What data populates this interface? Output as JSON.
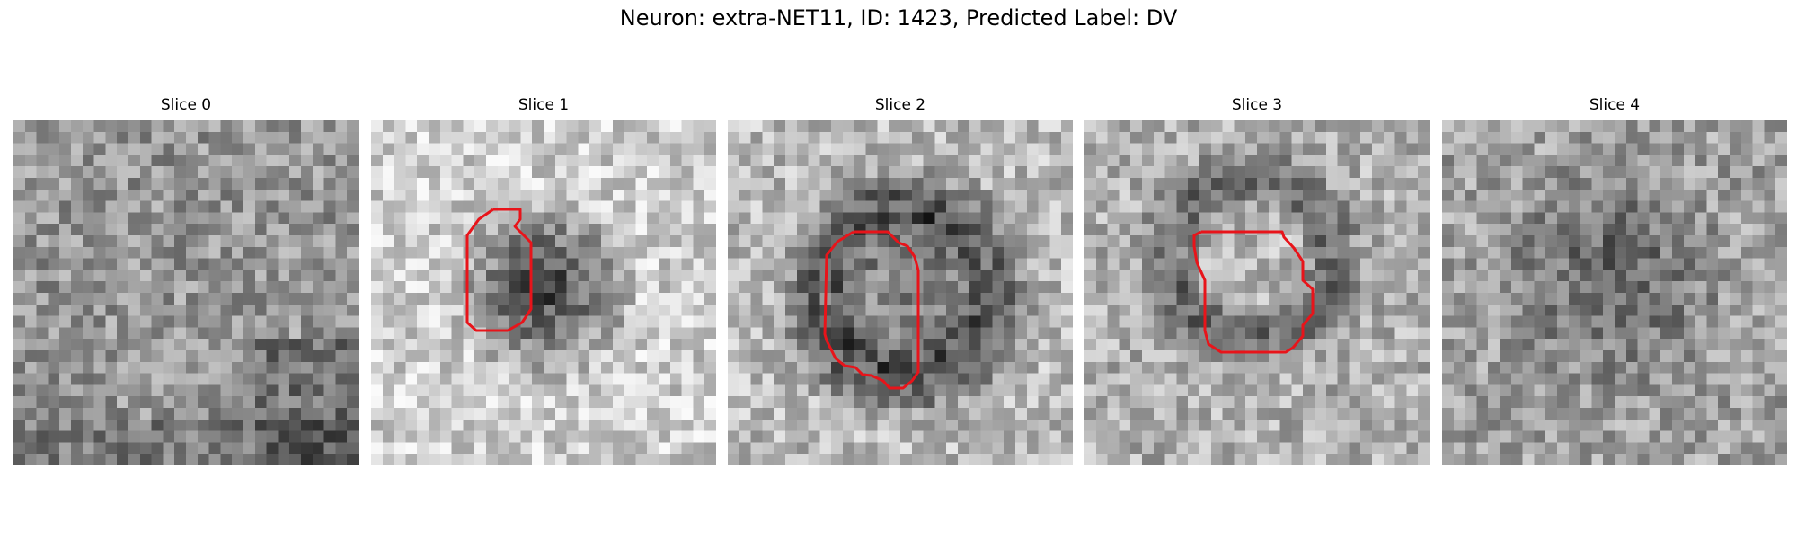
{
  "figure": {
    "title": "Neuron: extra-NET11, ID: 1423, Predicted Label: DV",
    "contour_color": "#e8141a",
    "colormap": "gray",
    "panels": [
      {
        "title": "Slice 0",
        "has_contour": false
      },
      {
        "title": "Slice 1",
        "has_contour": true
      },
      {
        "title": "Slice 2",
        "has_contour": true
      },
      {
        "title": "Slice 3",
        "has_contour": true
      },
      {
        "title": "Slice 4",
        "has_contour": false
      }
    ]
  }
}
